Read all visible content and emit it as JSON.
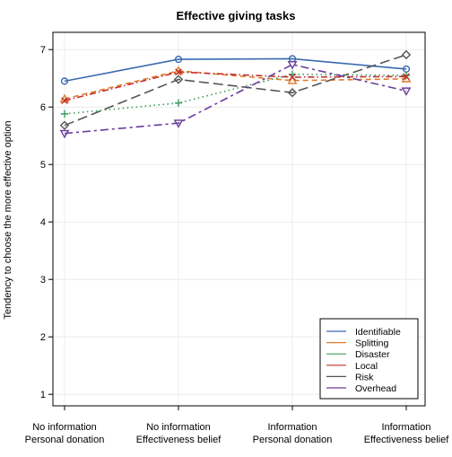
{
  "chart_data": {
    "type": "line",
    "title": "Effective giving tasks",
    "xlabel": "",
    "ylabel": "Tendency to choose the more effective option",
    "categories": [
      [
        "No information",
        "Personal donation"
      ],
      [
        "No information",
        "Effectiveness belief"
      ],
      [
        "Information",
        "Personal donation"
      ],
      [
        "Information",
        "Effectiveness belief"
      ]
    ],
    "ylim": [
      0.8,
      7.3
    ],
    "yticks": [
      1,
      2,
      3,
      4,
      5,
      6,
      7
    ],
    "grid": true,
    "legend": "bottom-right",
    "series": [
      {
        "name": "Identifiable",
        "values": [
          6.45,
          6.83,
          6.84,
          6.66
        ],
        "color": "#3a6bb0",
        "marker": "circle",
        "dash": "solid"
      },
      {
        "name": "Splitting",
        "values": [
          6.14,
          6.63,
          6.46,
          6.49
        ],
        "color": "#e07b2a",
        "marker": "triangle-up",
        "dash": "dashed"
      },
      {
        "name": "Disaster",
        "values": [
          5.88,
          6.07,
          6.57,
          6.55
        ],
        "color": "#3c9b5a",
        "marker": "plus",
        "dash": "dotted"
      },
      {
        "name": "Local",
        "values": [
          6.11,
          6.61,
          6.52,
          6.53
        ],
        "color": "#c0302e",
        "marker": "cross",
        "dash": "dashdot"
      },
      {
        "name": "Risk",
        "values": [
          5.68,
          6.48,
          6.25,
          6.91
        ],
        "color": "#555555",
        "marker": "diamond",
        "dash": "longdash"
      },
      {
        "name": "Overhead",
        "values": [
          5.54,
          5.72,
          6.74,
          6.28
        ],
        "color": "#6a3d9a",
        "marker": "triangle-down",
        "dash": "twodash"
      }
    ]
  }
}
